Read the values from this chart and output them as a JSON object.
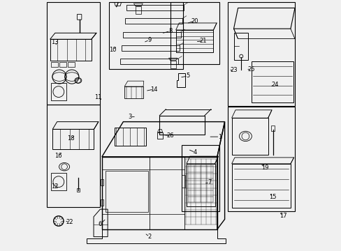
{
  "title": "",
  "bg_color": "#f0f0f0",
  "line_color": "#000000",
  "fig_width": 4.89,
  "fig_height": 3.6,
  "dpi": 100
}
